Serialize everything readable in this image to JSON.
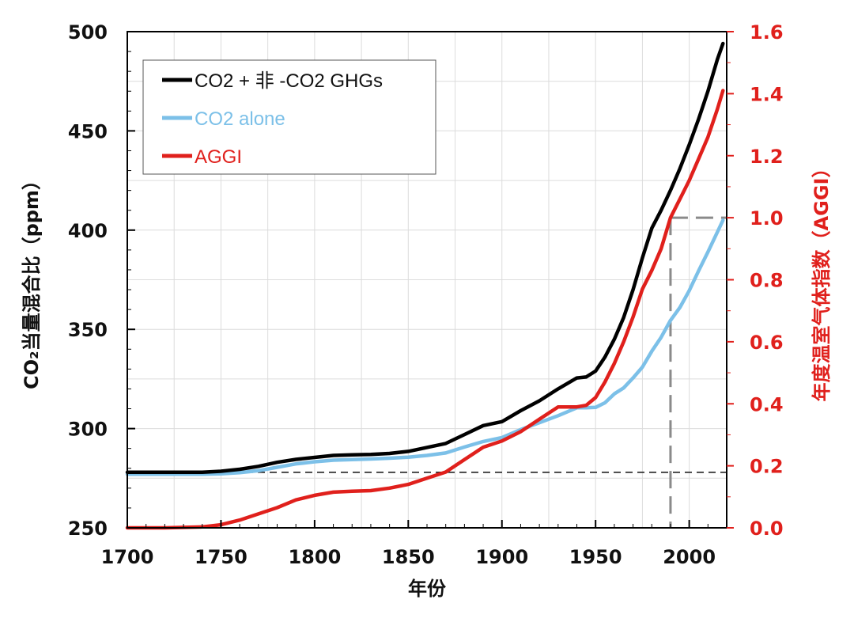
{
  "chart_data": {
    "type": "line",
    "xlabel": "年份",
    "ylabel_left": "CO₂当量混合比（ppm）",
    "ylabel_right": "年度温室气体指数（AGGI）",
    "xlim": [
      1700,
      2020
    ],
    "ylim_left": [
      250,
      500
    ],
    "ylim_right": [
      0.0,
      1.6
    ],
    "x_ticks": [
      "1700",
      "1750",
      "1800",
      "1850",
      "1900",
      "1950",
      "2000"
    ],
    "y_left_ticks": [
      "250",
      "300",
      "350",
      "400",
      "450",
      "500"
    ],
    "y_right_ticks": [
      "0.0",
      "0.2",
      "0.4",
      "0.6",
      "0.8",
      "1.0",
      "1.2",
      "1.4",
      "1.6"
    ],
    "legend_position": "top-left",
    "grid": true,
    "series": [
      {
        "name": "CO2 + 非 -CO2 GHGs",
        "axis": "left",
        "color": "#000000",
        "points": [
          [
            1700,
            278
          ],
          [
            1720,
            278
          ],
          [
            1740,
            278
          ],
          [
            1750,
            278.5
          ],
          [
            1760,
            279.5
          ],
          [
            1770,
            281
          ],
          [
            1780,
            283
          ],
          [
            1790,
            284.5
          ],
          [
            1800,
            285.5
          ],
          [
            1810,
            286.5
          ],
          [
            1820,
            286.8
          ],
          [
            1830,
            287
          ],
          [
            1840,
            287.5
          ],
          [
            1850,
            288.5
          ],
          [
            1860,
            290.5
          ],
          [
            1870,
            292.5
          ],
          [
            1880,
            297
          ],
          [
            1890,
            301.5
          ],
          [
            1900,
            303.5
          ],
          [
            1910,
            309
          ],
          [
            1920,
            314
          ],
          [
            1930,
            320
          ],
          [
            1940,
            325.5
          ],
          [
            1945,
            326
          ],
          [
            1950,
            329
          ],
          [
            1955,
            336
          ],
          [
            1960,
            345
          ],
          [
            1965,
            356
          ],
          [
            1970,
            370
          ],
          [
            1975,
            386
          ],
          [
            1980,
            401
          ],
          [
            1985,
            410
          ],
          [
            1990,
            420
          ],
          [
            1995,
            431
          ],
          [
            2000,
            443
          ],
          [
            2005,
            456
          ],
          [
            2010,
            470
          ],
          [
            2015,
            486
          ],
          [
            2018,
            494
          ]
        ]
      },
      {
        "name": "CO2 alone",
        "axis": "left",
        "color": "#7cc0e8",
        "points": [
          [
            1700,
            277
          ],
          [
            1720,
            277
          ],
          [
            1740,
            277
          ],
          [
            1750,
            277.2
          ],
          [
            1760,
            277.8
          ],
          [
            1770,
            278.8
          ],
          [
            1780,
            280.5
          ],
          [
            1790,
            282.2
          ],
          [
            1800,
            283.3
          ],
          [
            1810,
            284.1
          ],
          [
            1820,
            284.4
          ],
          [
            1830,
            284.7
          ],
          [
            1840,
            285.1
          ],
          [
            1850,
            285.6
          ],
          [
            1860,
            286.5
          ],
          [
            1870,
            287.7
          ],
          [
            1880,
            290.7
          ],
          [
            1890,
            293.5
          ],
          [
            1900,
            295.5
          ],
          [
            1910,
            299.5
          ],
          [
            1920,
            303
          ],
          [
            1930,
            306.5
          ],
          [
            1940,
            310.5
          ],
          [
            1945,
            310.5
          ],
          [
            1950,
            310.7
          ],
          [
            1955,
            313
          ],
          [
            1960,
            317.5
          ],
          [
            1965,
            320.5
          ],
          [
            1970,
            325.5
          ],
          [
            1975,
            331
          ],
          [
            1980,
            339
          ],
          [
            1985,
            346
          ],
          [
            1990,
            354.5
          ],
          [
            1995,
            361
          ],
          [
            2000,
            369.5
          ],
          [
            2005,
            379.5
          ],
          [
            2010,
            389
          ],
          [
            2015,
            399
          ],
          [
            2018,
            405
          ]
        ]
      },
      {
        "name": "AGGI",
        "axis": "right",
        "color": "#e0201c",
        "points": [
          [
            1700,
            0.0
          ],
          [
            1720,
            0.0
          ],
          [
            1740,
            0.003
          ],
          [
            1750,
            0.01
          ],
          [
            1760,
            0.025
          ],
          [
            1770,
            0.045
          ],
          [
            1780,
            0.065
          ],
          [
            1790,
            0.09
          ],
          [
            1800,
            0.105
          ],
          [
            1810,
            0.115
          ],
          [
            1820,
            0.118
          ],
          [
            1830,
            0.12
          ],
          [
            1840,
            0.128
          ],
          [
            1850,
            0.14
          ],
          [
            1860,
            0.16
          ],
          [
            1870,
            0.18
          ],
          [
            1880,
            0.22
          ],
          [
            1890,
            0.26
          ],
          [
            1900,
            0.28
          ],
          [
            1910,
            0.31
          ],
          [
            1920,
            0.35
          ],
          [
            1930,
            0.39
          ],
          [
            1940,
            0.39
          ],
          [
            1945,
            0.395
          ],
          [
            1950,
            0.42
          ],
          [
            1955,
            0.47
          ],
          [
            1960,
            0.53
          ],
          [
            1965,
            0.6
          ],
          [
            1970,
            0.68
          ],
          [
            1975,
            0.77
          ],
          [
            1980,
            0.83
          ],
          [
            1985,
            0.9
          ],
          [
            1990,
            1.0
          ],
          [
            1995,
            1.06
          ],
          [
            2000,
            1.12
          ],
          [
            2005,
            1.19
          ],
          [
            2010,
            1.26
          ],
          [
            2015,
            1.35
          ],
          [
            2018,
            1.41
          ]
        ]
      }
    ],
    "reference": {
      "baseline_ppm": 278,
      "marker_year": 1990,
      "marker_aggi": 1.0
    }
  }
}
